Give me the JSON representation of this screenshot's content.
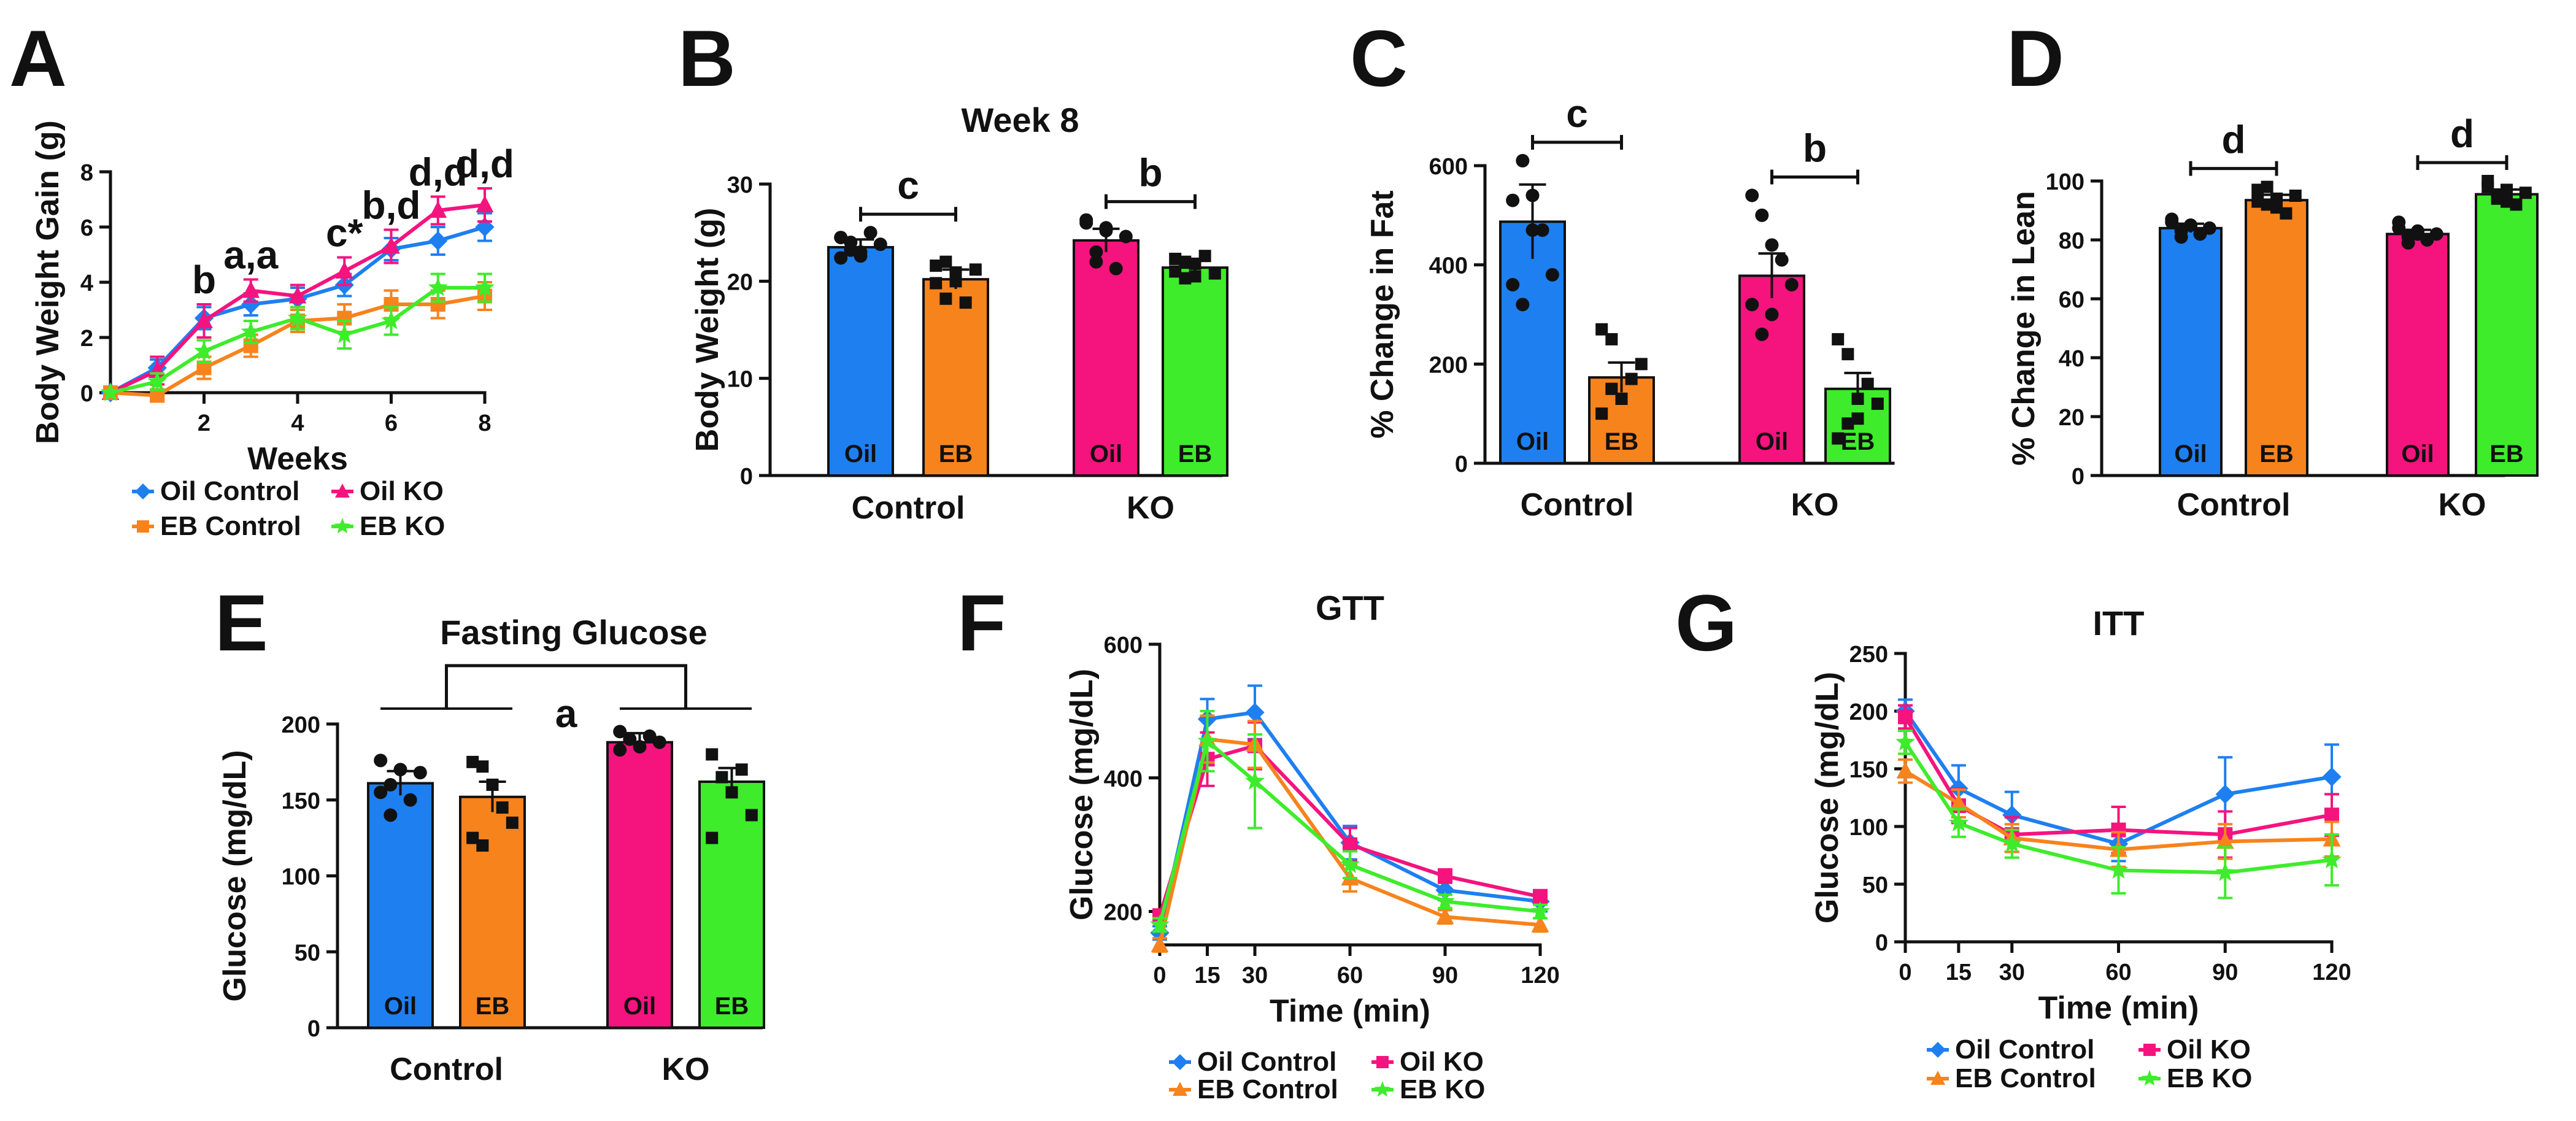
{
  "figure": {
    "panels": {
      "A": {
        "letter": "A"
      },
      "B": {
        "letter": "B"
      },
      "C": {
        "letter": "C"
      },
      "D": {
        "letter": "D"
      },
      "E": {
        "letter": "E"
      },
      "F": {
        "letter": "F"
      },
      "G": {
        "letter": "G"
      }
    }
  },
  "colors": {
    "oil_control": "#1E7FF0",
    "eb_control": "#F7831D",
    "oil_ko": "#F5137E",
    "eb_ko": "#3EEC2B"
  },
  "chart_data": [
    {
      "id": "A",
      "type": "line",
      "title": "",
      "xlabel": "Weeks",
      "ylabel": "Body Weight Gain (g)",
      "xlim": [
        0,
        8
      ],
      "ylim": [
        0,
        8
      ],
      "xticks": [
        2,
        4,
        6,
        8
      ],
      "yticks": [
        0,
        2,
        4,
        6,
        8
      ],
      "x": [
        0,
        1,
        2,
        3,
        4,
        5,
        6,
        7,
        8
      ],
      "series": [
        {
          "name": "Oil Control",
          "color_key": "oil_control",
          "marker": "diamond",
          "values": [
            0,
            0.9,
            2.7,
            3.2,
            3.4,
            3.9,
            5.2,
            5.5,
            6.0
          ],
          "errors": [
            0,
            0.3,
            0.4,
            0.4,
            0.4,
            0.4,
            0.4,
            0.5,
            0.5
          ]
        },
        {
          "name": "Oil KO",
          "color_key": "oil_ko",
          "marker": "triangle",
          "values": [
            0,
            0.8,
            2.6,
            3.7,
            3.5,
            4.4,
            5.3,
            6.6,
            6.8
          ],
          "errors": [
            0,
            0.5,
            0.6,
            0.4,
            0.4,
            0.5,
            0.6,
            0.5,
            0.6
          ]
        },
        {
          "name": "EB Control",
          "color_key": "eb_control",
          "marker": "square",
          "values": [
            0,
            -0.1,
            0.9,
            1.7,
            2.6,
            2.7,
            3.2,
            3.2,
            3.5
          ],
          "errors": [
            0,
            0.2,
            0.4,
            0.4,
            0.4,
            0.5,
            0.5,
            0.5,
            0.5
          ]
        },
        {
          "name": "EB KO",
          "color_key": "eb_ko",
          "marker": "star",
          "values": [
            0,
            0.4,
            1.5,
            2.2,
            2.7,
            2.1,
            2.6,
            3.8,
            3.8
          ],
          "errors": [
            0,
            0.3,
            0.4,
            0.4,
            0.4,
            0.5,
            0.5,
            0.5,
            0.5
          ]
        }
      ],
      "annotations": [
        {
          "text": "b",
          "x": 2
        },
        {
          "text": "a,a",
          "x": 3
        },
        {
          "text": "c*",
          "x": 5
        },
        {
          "text": "b,d",
          "x": 6
        },
        {
          "text": "d,d",
          "x": 7
        },
        {
          "text": "d,d",
          "x": 8
        }
      ],
      "legend": [
        "Oil Control",
        "Oil KO",
        "EB Control",
        "EB KO"
      ]
    },
    {
      "id": "B",
      "type": "bar",
      "title": "Week 8",
      "xlabel": "",
      "ylabel": "Body Weight (g)",
      "ylim": [
        0,
        30
      ],
      "yticks": [
        0,
        10,
        20,
        30
      ],
      "groups": [
        "Control",
        "KO"
      ],
      "bars": [
        {
          "label": "Oil",
          "group": "Control",
          "color_key": "oil_control",
          "value": 23.5,
          "error": 0.8
        },
        {
          "label": "EB",
          "group": "Control",
          "color_key": "eb_control",
          "value": 20.2,
          "error": 1.0
        },
        {
          "label": "Oil",
          "group": "KO",
          "color_key": "oil_ko",
          "value": 24.2,
          "error": 1.2
        },
        {
          "label": "EB",
          "group": "KO",
          "color_key": "eb_ko",
          "value": 21.4,
          "error": 0.7
        }
      ],
      "points": [
        [
          24.5,
          23.2,
          22.6,
          25.0,
          23.8,
          22.4,
          24.0,
          23.0
        ],
        [
          21.6,
          18.2,
          20.9,
          17.8,
          21.2,
          19.8,
          22.0,
          20.0
        ],
        [
          26.0,
          22.0,
          25.2,
          21.3,
          24.6,
          26.3,
          23.0,
          25.5
        ],
        [
          22.3,
          20.3,
          21.8,
          22.6,
          20.8,
          21.0,
          22.0,
          20.5
        ]
      ],
      "significance": [
        {
          "text": "c",
          "group": "Control"
        },
        {
          "text": "b",
          "group": "KO"
        }
      ]
    },
    {
      "id": "C",
      "type": "bar",
      "title": "",
      "xlabel": "",
      "ylabel": "% Change in Fat",
      "ylim": [
        0,
        600
      ],
      "yticks": [
        0,
        200,
        400,
        600
      ],
      "groups": [
        "Control",
        "KO"
      ],
      "bars": [
        {
          "label": "Oil",
          "group": "Control",
          "color_key": "oil_control",
          "value": 487,
          "error": 75
        },
        {
          "label": "EB",
          "group": "Control",
          "color_key": "eb_control",
          "value": 173,
          "error": 30
        },
        {
          "label": "Oil",
          "group": "KO",
          "color_key": "oil_ko",
          "value": 378,
          "error": 45
        },
        {
          "label": "EB",
          "group": "KO",
          "color_key": "eb_ko",
          "value": 150,
          "error": 32
        }
      ],
      "points": [
        [
          530,
          610,
          470,
          470,
          380,
          360,
          320,
          540
        ],
        [
          270,
          250,
          130,
          170,
          200,
          100,
          150,
          130
        ],
        [
          540,
          500,
          440,
          410,
          360,
          320,
          260,
          300
        ],
        [
          250,
          220,
          130,
          160,
          120,
          50,
          80,
          90
        ]
      ],
      "significance": [
        {
          "text": "c",
          "group": "Control"
        },
        {
          "text": "b",
          "group": "KO"
        }
      ]
    },
    {
      "id": "D",
      "type": "bar",
      "title": "",
      "xlabel": "",
      "ylabel": "% Change in Lean",
      "ylim": [
        0,
        100
      ],
      "yticks": [
        0,
        20,
        40,
        60,
        80,
        100
      ],
      "groups": [
        "Control",
        "KO"
      ],
      "bars": [
        {
          "label": "Oil",
          "group": "Control",
          "color_key": "oil_control",
          "value": 84,
          "error": 1.5
        },
        {
          "label": "EB",
          "group": "Control",
          "color_key": "eb_control",
          "value": 93.5,
          "error": 1.8
        },
        {
          "label": "Oil",
          "group": "KO",
          "color_key": "oil_ko",
          "value": 82,
          "error": 1.4
        },
        {
          "label": "EB",
          "group": "KO",
          "color_key": "eb_ko",
          "value": 95.5,
          "error": 1.6
        }
      ],
      "points": [
        [
          87,
          83,
          85,
          82,
          84,
          86,
          81,
          85
        ],
        [
          97,
          92,
          94,
          89,
          95,
          93,
          98,
          91
        ],
        [
          86,
          81,
          83,
          80,
          82,
          84,
          79,
          82
        ],
        [
          98,
          94,
          97,
          92,
          96,
          100,
          95,
          93
        ]
      ],
      "significance": [
        {
          "text": "d",
          "group": "Control"
        },
        {
          "text": "d",
          "group": "KO"
        }
      ]
    },
    {
      "id": "E",
      "type": "bar",
      "title": "Fasting Glucose",
      "xlabel": "",
      "ylabel": "Glucose (mg/dL)",
      "ylim": [
        0,
        200
      ],
      "yticks": [
        0,
        50,
        100,
        150,
        200
      ],
      "groups": [
        "Control",
        "KO"
      ],
      "bars": [
        {
          "label": "Oil",
          "group": "Control",
          "color_key": "oil_control",
          "value": 161,
          "error": 8
        },
        {
          "label": "EB",
          "group": "Control",
          "color_key": "eb_control",
          "value": 152,
          "error": 10
        },
        {
          "label": "Oil",
          "group": "KO",
          "color_key": "oil_ko",
          "value": 188,
          "error": 6
        },
        {
          "label": "EB",
          "group": "KO",
          "color_key": "eb_ko",
          "value": 162,
          "error": 9
        }
      ],
      "points": [
        [
          176,
          160,
          170,
          150,
          168,
          155,
          140
        ],
        [
          175,
          172,
          160,
          145,
          135,
          125,
          120
        ],
        [
          195,
          190,
          185,
          192,
          188,
          183
        ],
        [
          180,
          165,
          155,
          170,
          140,
          125
        ]
      ],
      "significance": [
        {
          "text": "a",
          "group": "all"
        }
      ]
    },
    {
      "id": "F",
      "type": "line",
      "title": "GTT",
      "xlabel": "Time (min)",
      "ylabel": "Glucose (mg/dL)",
      "xlim": [
        0,
        120
      ],
      "ylim": [
        150,
        600
      ],
      "xticks": [
        0,
        15,
        30,
        60,
        90,
        120
      ],
      "yticks": [
        200,
        400,
        600
      ],
      "x": [
        0,
        15,
        30,
        60,
        90,
        120
      ],
      "series": [
        {
          "name": "Oil Control",
          "color_key": "oil_control",
          "marker": "diamond",
          "values": [
            168,
            488,
            498,
            303,
            232,
            215
          ],
          "errors": [
            10,
            30,
            40,
            25,
            15,
            15
          ]
        },
        {
          "name": "Oil KO",
          "color_key": "oil_ko",
          "marker": "square",
          "values": [
            193,
            428,
            448,
            300,
            253,
            222
          ],
          "errors": [
            10,
            40,
            35,
            25,
            10,
            10
          ]
        },
        {
          "name": "EB Control",
          "color_key": "eb_control",
          "marker": "triangle",
          "values": [
            150,
            458,
            450,
            250,
            192,
            180
          ],
          "errors": [
            10,
            35,
            35,
            20,
            10,
            10
          ]
        },
        {
          "name": "EB KO",
          "color_key": "eb_ko",
          "marker": "star",
          "values": [
            180,
            455,
            395,
            270,
            215,
            200
          ],
          "errors": [
            10,
            45,
            70,
            20,
            10,
            10
          ]
        }
      ],
      "legend": [
        "Oil Control",
        "Oil KO",
        "EB Control",
        "EB KO"
      ]
    },
    {
      "id": "G",
      "type": "line",
      "title": "ITT",
      "xlabel": "Time (min)",
      "ylabel": "Glucose (mg/dL)",
      "xlim": [
        0,
        120
      ],
      "ylim": [
        0,
        250
      ],
      "xticks": [
        0,
        15,
        30,
        60,
        90,
        120
      ],
      "yticks": [
        0,
        50,
        100,
        150,
        200,
        250
      ],
      "x": [
        0,
        15,
        30,
        60,
        90,
        120
      ],
      "series": [
        {
          "name": "Oil  Control",
          "color_key": "oil_control",
          "marker": "diamond",
          "values": [
            200,
            133,
            110,
            85,
            128,
            143
          ],
          "errors": [
            10,
            20,
            20,
            15,
            32,
            28
          ]
        },
        {
          "name": "Oil KO",
          "color_key": "oil_ko",
          "marker": "square",
          "values": [
            195,
            118,
            93,
            97,
            93,
            110
          ],
          "errors": [
            10,
            15,
            15,
            20,
            20,
            18
          ]
        },
        {
          "name": "EB  Control",
          "color_key": "eb_control",
          "marker": "triangle",
          "values": [
            148,
            120,
            90,
            80,
            87,
            89
          ],
          "errors": [
            10,
            12,
            12,
            15,
            15,
            15
          ]
        },
        {
          "name": "EB KO",
          "color_key": "eb_ko",
          "marker": "star",
          "values": [
            173,
            103,
            85,
            62,
            60,
            71
          ],
          "errors": [
            10,
            12,
            12,
            20,
            22,
            22
          ]
        }
      ],
      "legend": [
        "Oil  Control",
        "Oil KO",
        "EB  Control",
        "EB KO"
      ]
    }
  ]
}
